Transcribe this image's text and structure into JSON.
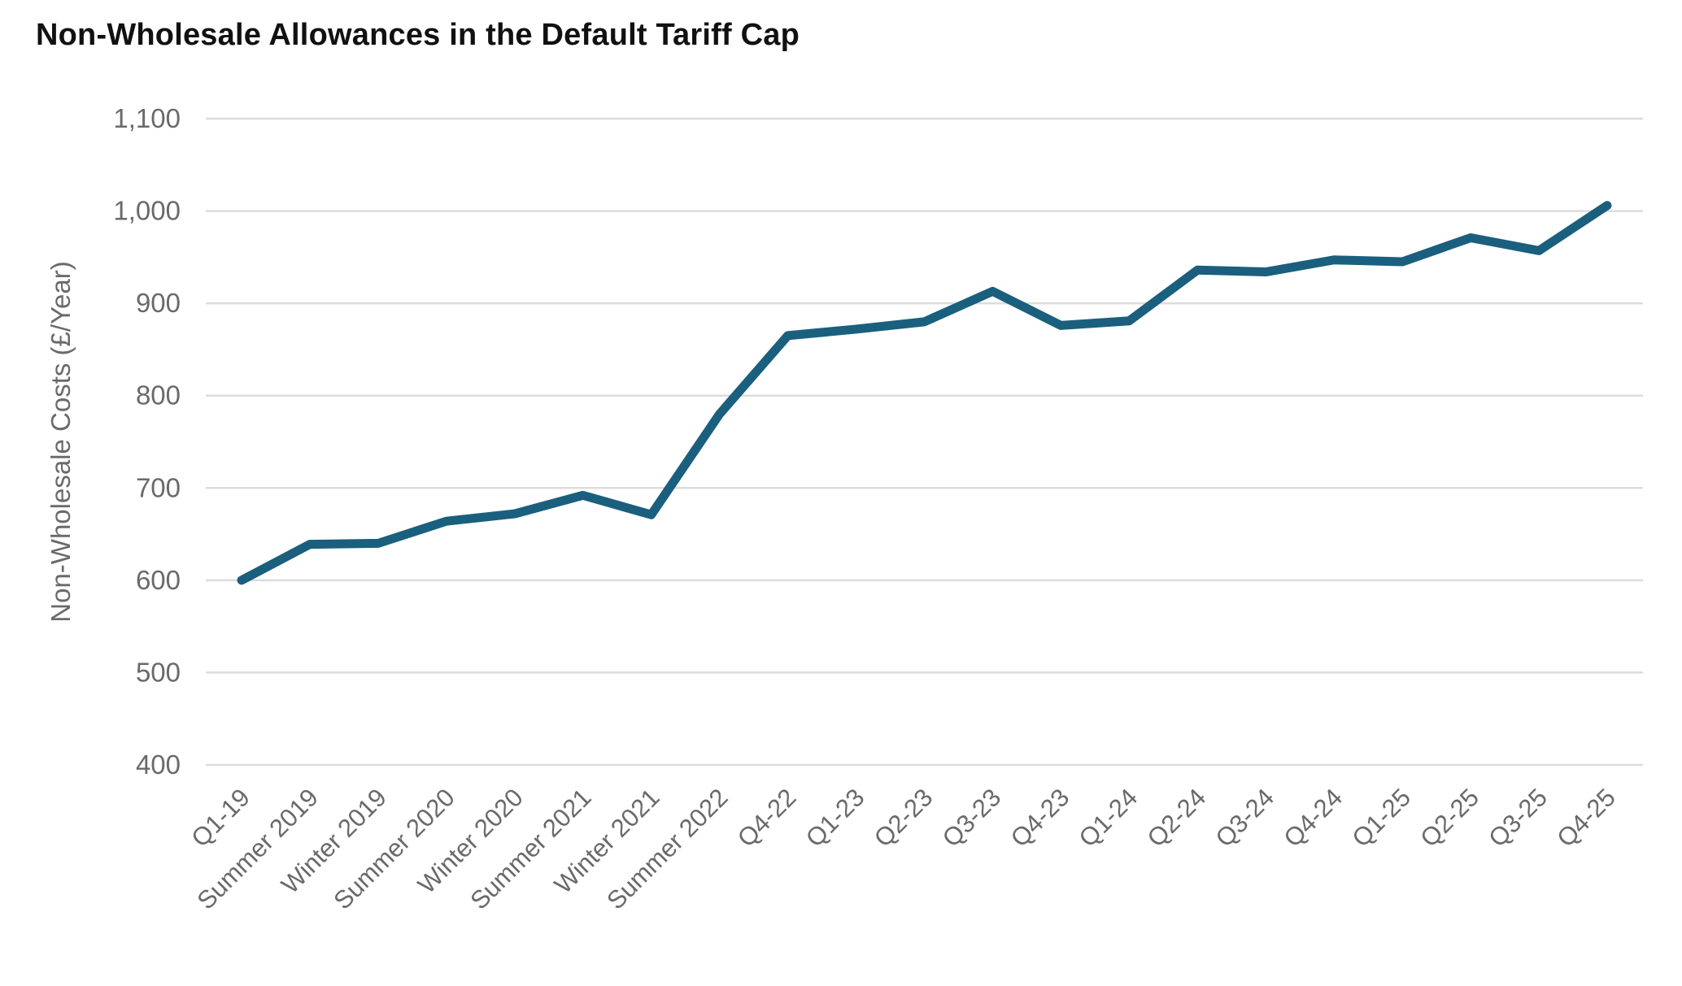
{
  "chart_data": {
    "type": "line",
    "title": "Non-Wholesale Allowances in the Default Tariff Cap",
    "xlabel": "",
    "ylabel": "Non-Wholesale Costs (£/Year)",
    "categories": [
      "Q1-19",
      "Summer 2019",
      "Winter 2019",
      "Summer 2020",
      "Winter 2020",
      "Summer 2021",
      "Winter 2021",
      "Summer 2022",
      "Q4-22",
      "Q1-23",
      "Q2-23",
      "Q3-23",
      "Q4-23",
      "Q1-24",
      "Q2-24",
      "Q3-24",
      "Q4-24",
      "Q1-25",
      "Q2-25",
      "Q3-25",
      "Q4-25"
    ],
    "series": [
      {
        "name": "Non-Wholesale Allowance",
        "values": [
          600,
          639,
          640,
          664,
          672,
          692,
          671,
          780,
          865,
          872,
          880,
          913,
          876,
          881,
          936,
          934,
          947,
          945,
          971,
          957,
          1006
        ]
      }
    ],
    "ylim": [
      400,
      1100
    ],
    "yticks": [
      400,
      500,
      600,
      700,
      800,
      900,
      1000,
      1100
    ],
    "grid": "horizontal",
    "legend": "none",
    "colors": {
      "line": "#1a5f7e",
      "grid": "#dcdcdc",
      "axis_text": "#6a6a6a",
      "title_text": "#111111"
    }
  }
}
